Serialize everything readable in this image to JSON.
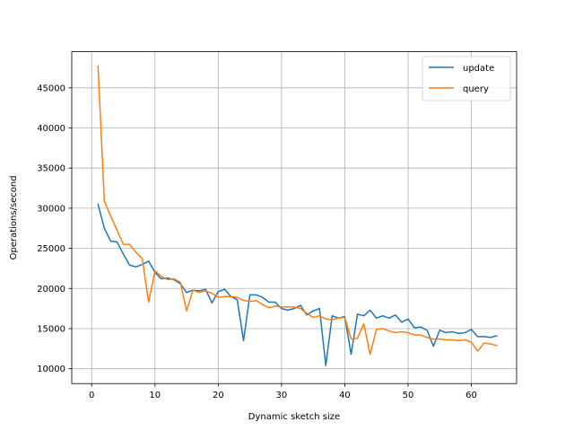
{
  "chart_data": {
    "type": "line",
    "title": "",
    "xlabel": "Dynamic sketch size",
    "ylabel": "Operations/second",
    "xlim": [
      -3.15,
      67.15
    ],
    "ylim": [
      8150,
      49500
    ],
    "xticks": [
      0,
      10,
      20,
      30,
      40,
      50,
      60
    ],
    "xtick_labels": [
      "0",
      "10",
      "20",
      "30",
      "40",
      "50",
      "60"
    ],
    "yticks": [
      10000,
      15000,
      20000,
      25000,
      30000,
      35000,
      40000,
      45000
    ],
    "ytick_labels": [
      "10000",
      "15000",
      "20000",
      "25000",
      "30000",
      "35000",
      "40000",
      "45000"
    ],
    "grid": true,
    "legend_position": "top-right",
    "x": [
      1,
      2,
      3,
      4,
      5,
      6,
      7,
      8,
      9,
      10,
      11,
      12,
      13,
      14,
      15,
      16,
      17,
      18,
      19,
      20,
      21,
      22,
      23,
      24,
      25,
      26,
      27,
      28,
      29,
      30,
      31,
      32,
      33,
      34,
      35,
      36,
      37,
      38,
      39,
      40,
      41,
      42,
      43,
      44,
      45,
      46,
      47,
      48,
      49,
      50,
      51,
      52,
      53,
      54,
      55,
      56,
      57,
      58,
      59,
      60,
      61,
      62,
      63,
      64
    ],
    "series": [
      {
        "name": "update",
        "color": "#1f77b4",
        "values": [
          30500,
          27500,
          25900,
          25800,
          24300,
          22900,
          22700,
          23000,
          23400,
          22000,
          21200,
          21300,
          21100,
          20600,
          19500,
          19800,
          19700,
          19900,
          18200,
          19600,
          19900,
          19000,
          18600,
          13500,
          19200,
          19200,
          18900,
          18300,
          18300,
          17500,
          17300,
          17500,
          17900,
          16700,
          17200,
          17500,
          10400,
          16600,
          16300,
          16500,
          11800,
          16800,
          16600,
          17300,
          16300,
          16600,
          16300,
          16700,
          15800,
          16200,
          15100,
          15200,
          14800,
          12800,
          14800,
          14500,
          14600,
          14400,
          14500,
          14900,
          14000,
          14000,
          13900,
          14100
        ]
      },
      {
        "name": "query",
        "color": "#ff7f0e",
        "values": [
          47700,
          30900,
          29000,
          27300,
          25500,
          25500,
          24500,
          23700,
          18300,
          22200,
          21500,
          21100,
          21200,
          20800,
          17200,
          19800,
          19500,
          19700,
          19400,
          18900,
          19000,
          19000,
          18900,
          18500,
          18400,
          18500,
          18000,
          17600,
          17800,
          17700,
          17700,
          17700,
          17500,
          16900,
          16400,
          16600,
          16200,
          16100,
          16300,
          16400,
          13700,
          13800,
          15600,
          11800,
          14900,
          15000,
          14700,
          14500,
          14600,
          14500,
          14200,
          14200,
          13900,
          13700,
          13700,
          13600,
          13600,
          13500,
          13600,
          13300,
          12200,
          13200,
          13100,
          12900
        ]
      }
    ]
  }
}
